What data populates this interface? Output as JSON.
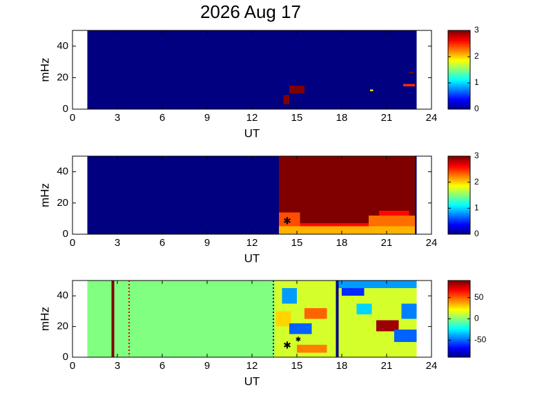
{
  "title": "2026 Aug 17",
  "chart_data": [
    {
      "type": "heatmap",
      "xlabel": "UT",
      "ylabel": "mHz",
      "xlim": [
        0,
        24
      ],
      "xticks": [
        0,
        3,
        6,
        9,
        12,
        15,
        18,
        21,
        24
      ],
      "ylim": [
        0,
        50
      ],
      "yticks": [
        0,
        20,
        40
      ],
      "clim": [
        0,
        3
      ],
      "cticks": [
        0,
        1,
        2,
        3
      ],
      "regions": [
        {
          "x": [
            1,
            23
          ],
          "y": [
            0,
            50
          ],
          "value": 0
        },
        {
          "x": [
            14.1,
            14.5
          ],
          "y": [
            3,
            9
          ],
          "value": 3
        },
        {
          "x": [
            14.5,
            15.5
          ],
          "y": [
            10,
            15
          ],
          "value": 3
        },
        {
          "x": [
            19.9,
            20.1
          ],
          "y": [
            11.5,
            12.5
          ],
          "value": 2
        },
        {
          "x": [
            22.1,
            22.9
          ],
          "y": [
            14.5,
            16
          ],
          "value": 2.5
        },
        {
          "x": [
            22.5,
            22.8
          ],
          "y": [
            22.5,
            24
          ],
          "value": 3
        }
      ]
    },
    {
      "type": "heatmap",
      "xlabel": "UT",
      "ylabel": "mHz",
      "xlim": [
        0,
        24
      ],
      "xticks": [
        0,
        3,
        6,
        9,
        12,
        15,
        18,
        21,
        24
      ],
      "ylim": [
        0,
        50
      ],
      "yticks": [
        0,
        20,
        40
      ],
      "clim": [
        0,
        3
      ],
      "cticks": [
        0,
        1,
        2,
        3
      ],
      "regions": [
        {
          "x": [
            1,
            13.8
          ],
          "y": [
            0,
            50
          ],
          "value": 0
        },
        {
          "x": [
            13.8,
            22.9
          ],
          "y": [
            0,
            50
          ],
          "value": 3
        },
        {
          "x": [
            13.8,
            22.9
          ],
          "y": [
            0,
            5
          ],
          "value": 2.1
        },
        {
          "x": [
            13.8,
            15.2
          ],
          "y": [
            5,
            14
          ],
          "value": 2.4
        },
        {
          "x": [
            15.2,
            19.8
          ],
          "y": [
            5,
            7
          ],
          "value": 2.6
        },
        {
          "x": [
            19.8,
            22.9
          ],
          "y": [
            5,
            12
          ],
          "value": 2.3
        },
        {
          "x": [
            20.5,
            22.5
          ],
          "y": [
            12,
            15
          ],
          "value": 2.6
        },
        {
          "x": [
            22.9,
            23
          ],
          "y": [
            0,
            50
          ],
          "value": 0
        }
      ]
    },
    {
      "type": "heatmap",
      "xlabel": "UT",
      "ylabel": "mHz",
      "xlim": [
        0,
        24
      ],
      "xticks": [
        0,
        3,
        6,
        9,
        12,
        15,
        18,
        21,
        24
      ],
      "ylim": [
        0,
        50
      ],
      "yticks": [
        0,
        20,
        40
      ],
      "clim": [
        -90,
        90
      ],
      "cticks": [
        -50,
        0,
        50
      ],
      "regions": [
        {
          "x": [
            1,
            23
          ],
          "y": [
            0,
            50
          ],
          "value": 0
        },
        {
          "x": [
            2.6,
            2.8
          ],
          "y": [
            0,
            50
          ],
          "value": 90
        },
        {
          "x": [
            13.5,
            23
          ],
          "y": [
            0,
            50
          ],
          "value": 15
        },
        {
          "x": [
            13.6,
            14.6
          ],
          "y": [
            20,
            30
          ],
          "value": 30
        },
        {
          "x": [
            14,
            15
          ],
          "y": [
            35,
            45
          ],
          "value": -40
        },
        {
          "x": [
            14.5,
            16
          ],
          "y": [
            15,
            22
          ],
          "value": -50
        },
        {
          "x": [
            15.5,
            17
          ],
          "y": [
            25,
            32
          ],
          "value": 50
        },
        {
          "x": [
            15,
            17
          ],
          "y": [
            3,
            8
          ],
          "value": 45
        },
        {
          "x": [
            18,
            19.5
          ],
          "y": [
            40,
            50
          ],
          "value": -60
        },
        {
          "x": [
            17.8,
            23
          ],
          "y": [
            45,
            50
          ],
          "value": -40
        },
        {
          "x": [
            19,
            20
          ],
          "y": [
            28,
            35
          ],
          "value": -30
        },
        {
          "x": [
            20.3,
            21.8
          ],
          "y": [
            17,
            24
          ],
          "value": 85
        },
        {
          "x": [
            21.5,
            23
          ],
          "y": [
            10,
            18
          ],
          "value": -50
        },
        {
          "x": [
            22,
            23
          ],
          "y": [
            25,
            35
          ],
          "value": -45
        },
        {
          "x": [
            17.6,
            17.8
          ],
          "y": [
            0,
            50
          ],
          "value": -90
        }
      ]
    }
  ]
}
